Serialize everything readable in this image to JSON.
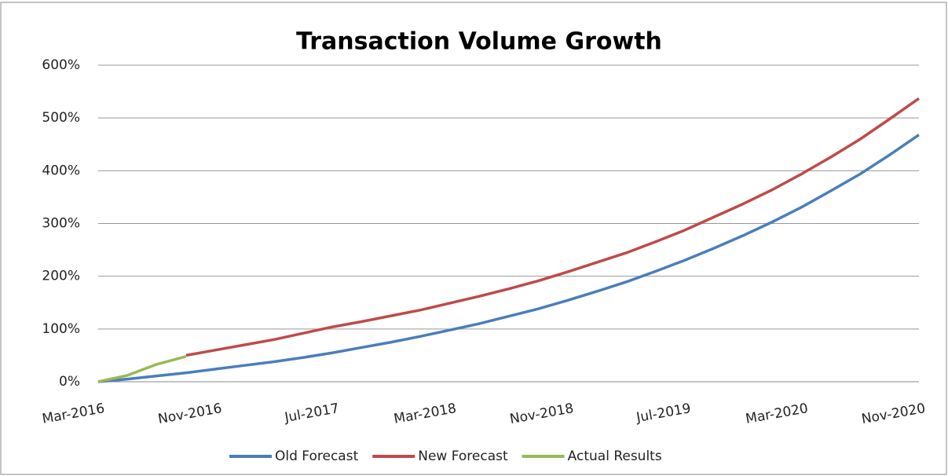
{
  "chart_data": {
    "type": "line",
    "title": "Transaction Volume Growth",
    "categories": [
      "Mar-2016",
      null,
      null,
      null,
      "Nov-2016",
      null,
      null,
      null,
      "Jul-2017",
      null,
      null,
      null,
      "Mar-2018",
      null,
      null,
      null,
      "Nov-2018",
      null,
      null,
      null,
      "Jul-2019",
      null,
      null,
      null,
      "Mar-2020",
      null,
      null,
      null,
      "Nov-2020"
    ],
    "series": [
      {
        "name": "Old Forecast",
        "color": "#4a7ebb",
        "values": [
          0,
          5,
          11,
          17,
          24,
          31,
          38,
          46,
          55,
          65,
          75,
          86,
          98,
          110,
          124,
          138,
          154,
          171,
          189,
          209,
          230,
          253,
          277,
          303,
          331,
          362,
          394,
          430,
          468
        ]
      },
      {
        "name": "New Forecast",
        "color": "#be4b48",
        "values": [
          null,
          null,
          null,
          50,
          60,
          70,
          80,
          92,
          104,
          114,
          125,
          136,
          149,
          162,
          176,
          191,
          208,
          226,
          244,
          265,
          287,
          312,
          337,
          364,
          394,
          426,
          460,
          498,
          537
        ]
      },
      {
        "name": "Actual Results",
        "color": "#98b954",
        "values": [
          0,
          12,
          33,
          48,
          null,
          null,
          null,
          null,
          null,
          null,
          null,
          null,
          null,
          null,
          null,
          null,
          null,
          null,
          null,
          null,
          null,
          null,
          null,
          null,
          null,
          null,
          null,
          null,
          null
        ]
      }
    ],
    "ylim": [
      0,
      600
    ],
    "yticks": [
      {
        "value": 0,
        "label": "0%"
      },
      {
        "value": 100,
        "label": "100%"
      },
      {
        "value": 200,
        "label": "200%"
      },
      {
        "value": 300,
        "label": "300%"
      },
      {
        "value": 400,
        "label": "400%"
      },
      {
        "value": 500,
        "label": "500%"
      },
      {
        "value": 600,
        "label": "600%"
      }
    ],
    "grid": true,
    "legend": "bottom"
  }
}
